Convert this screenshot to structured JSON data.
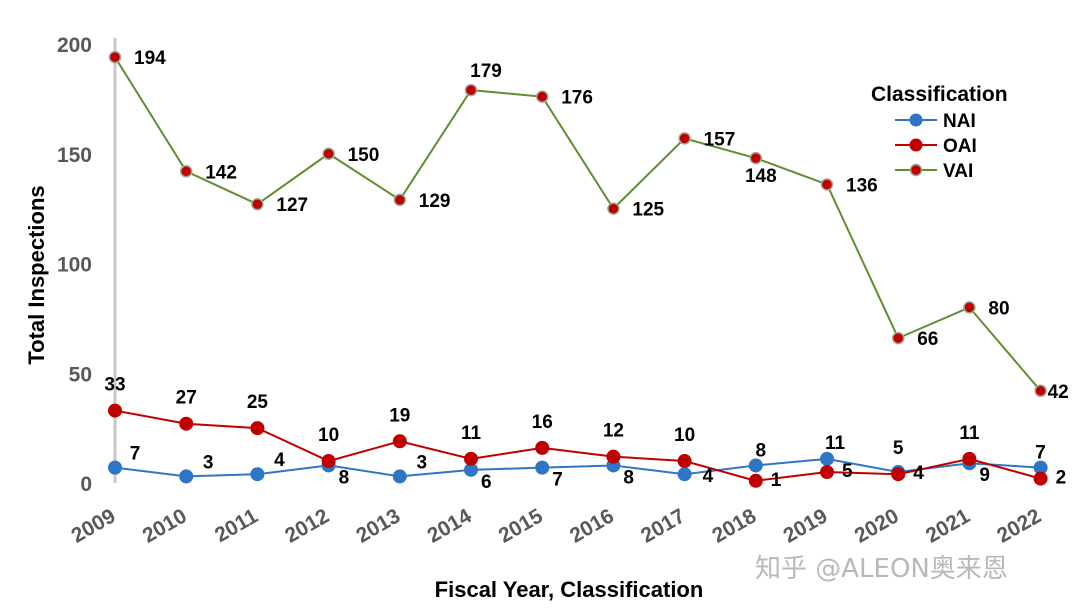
{
  "chart_data": {
    "type": "line",
    "xlabel": "Fiscal Year, Classification",
    "ylabel": "Total Inspections",
    "ylim": [
      0,
      200
    ],
    "yticks": [
      0,
      50,
      100,
      150,
      200
    ],
    "categories": [
      "2009",
      "2010",
      "2011",
      "2012",
      "2013",
      "2014",
      "2015",
      "2016",
      "2017",
      "2018",
      "2019",
      "2020",
      "2021",
      "2022"
    ],
    "legend": {
      "title": "Classification",
      "placement": "top-right"
    },
    "series": [
      {
        "name": "NAI",
        "color": "#2e75c6",
        "values": [
          7,
          3,
          4,
          8,
          3,
          6,
          7,
          8,
          4,
          8,
          11,
          5,
          9,
          7
        ]
      },
      {
        "name": "OAI",
        "color": "#c00000",
        "values": [
          33,
          27,
          25,
          10,
          19,
          11,
          16,
          12,
          10,
          1,
          5,
          4,
          11,
          2
        ]
      },
      {
        "name": "VAI",
        "color": "#5f8f2f",
        "values": [
          194,
          142,
          127,
          150,
          129,
          179,
          176,
          125,
          157,
          148,
          136,
          66,
          80,
          42
        ]
      }
    ],
    "data_labels": {
      "NAI": [
        "7",
        "3",
        "4",
        "8",
        "3",
        "6",
        "7",
        "8",
        "4",
        "8",
        "11",
        "5",
        "9",
        "7"
      ],
      "OAI": [
        "33",
        "27",
        "25",
        "10",
        "19",
        "11",
        "16",
        "12",
        "10",
        "1",
        "5",
        "4",
        "11",
        "2"
      ],
      "VAI": [
        "194",
        "142",
        "127",
        "150",
        "129",
        "179",
        "176",
        "125",
        "157",
        "148",
        "136",
        "66",
        "80",
        "42"
      ]
    },
    "grid": false
  },
  "watermark": "知乎 @ALEON奥来恩"
}
